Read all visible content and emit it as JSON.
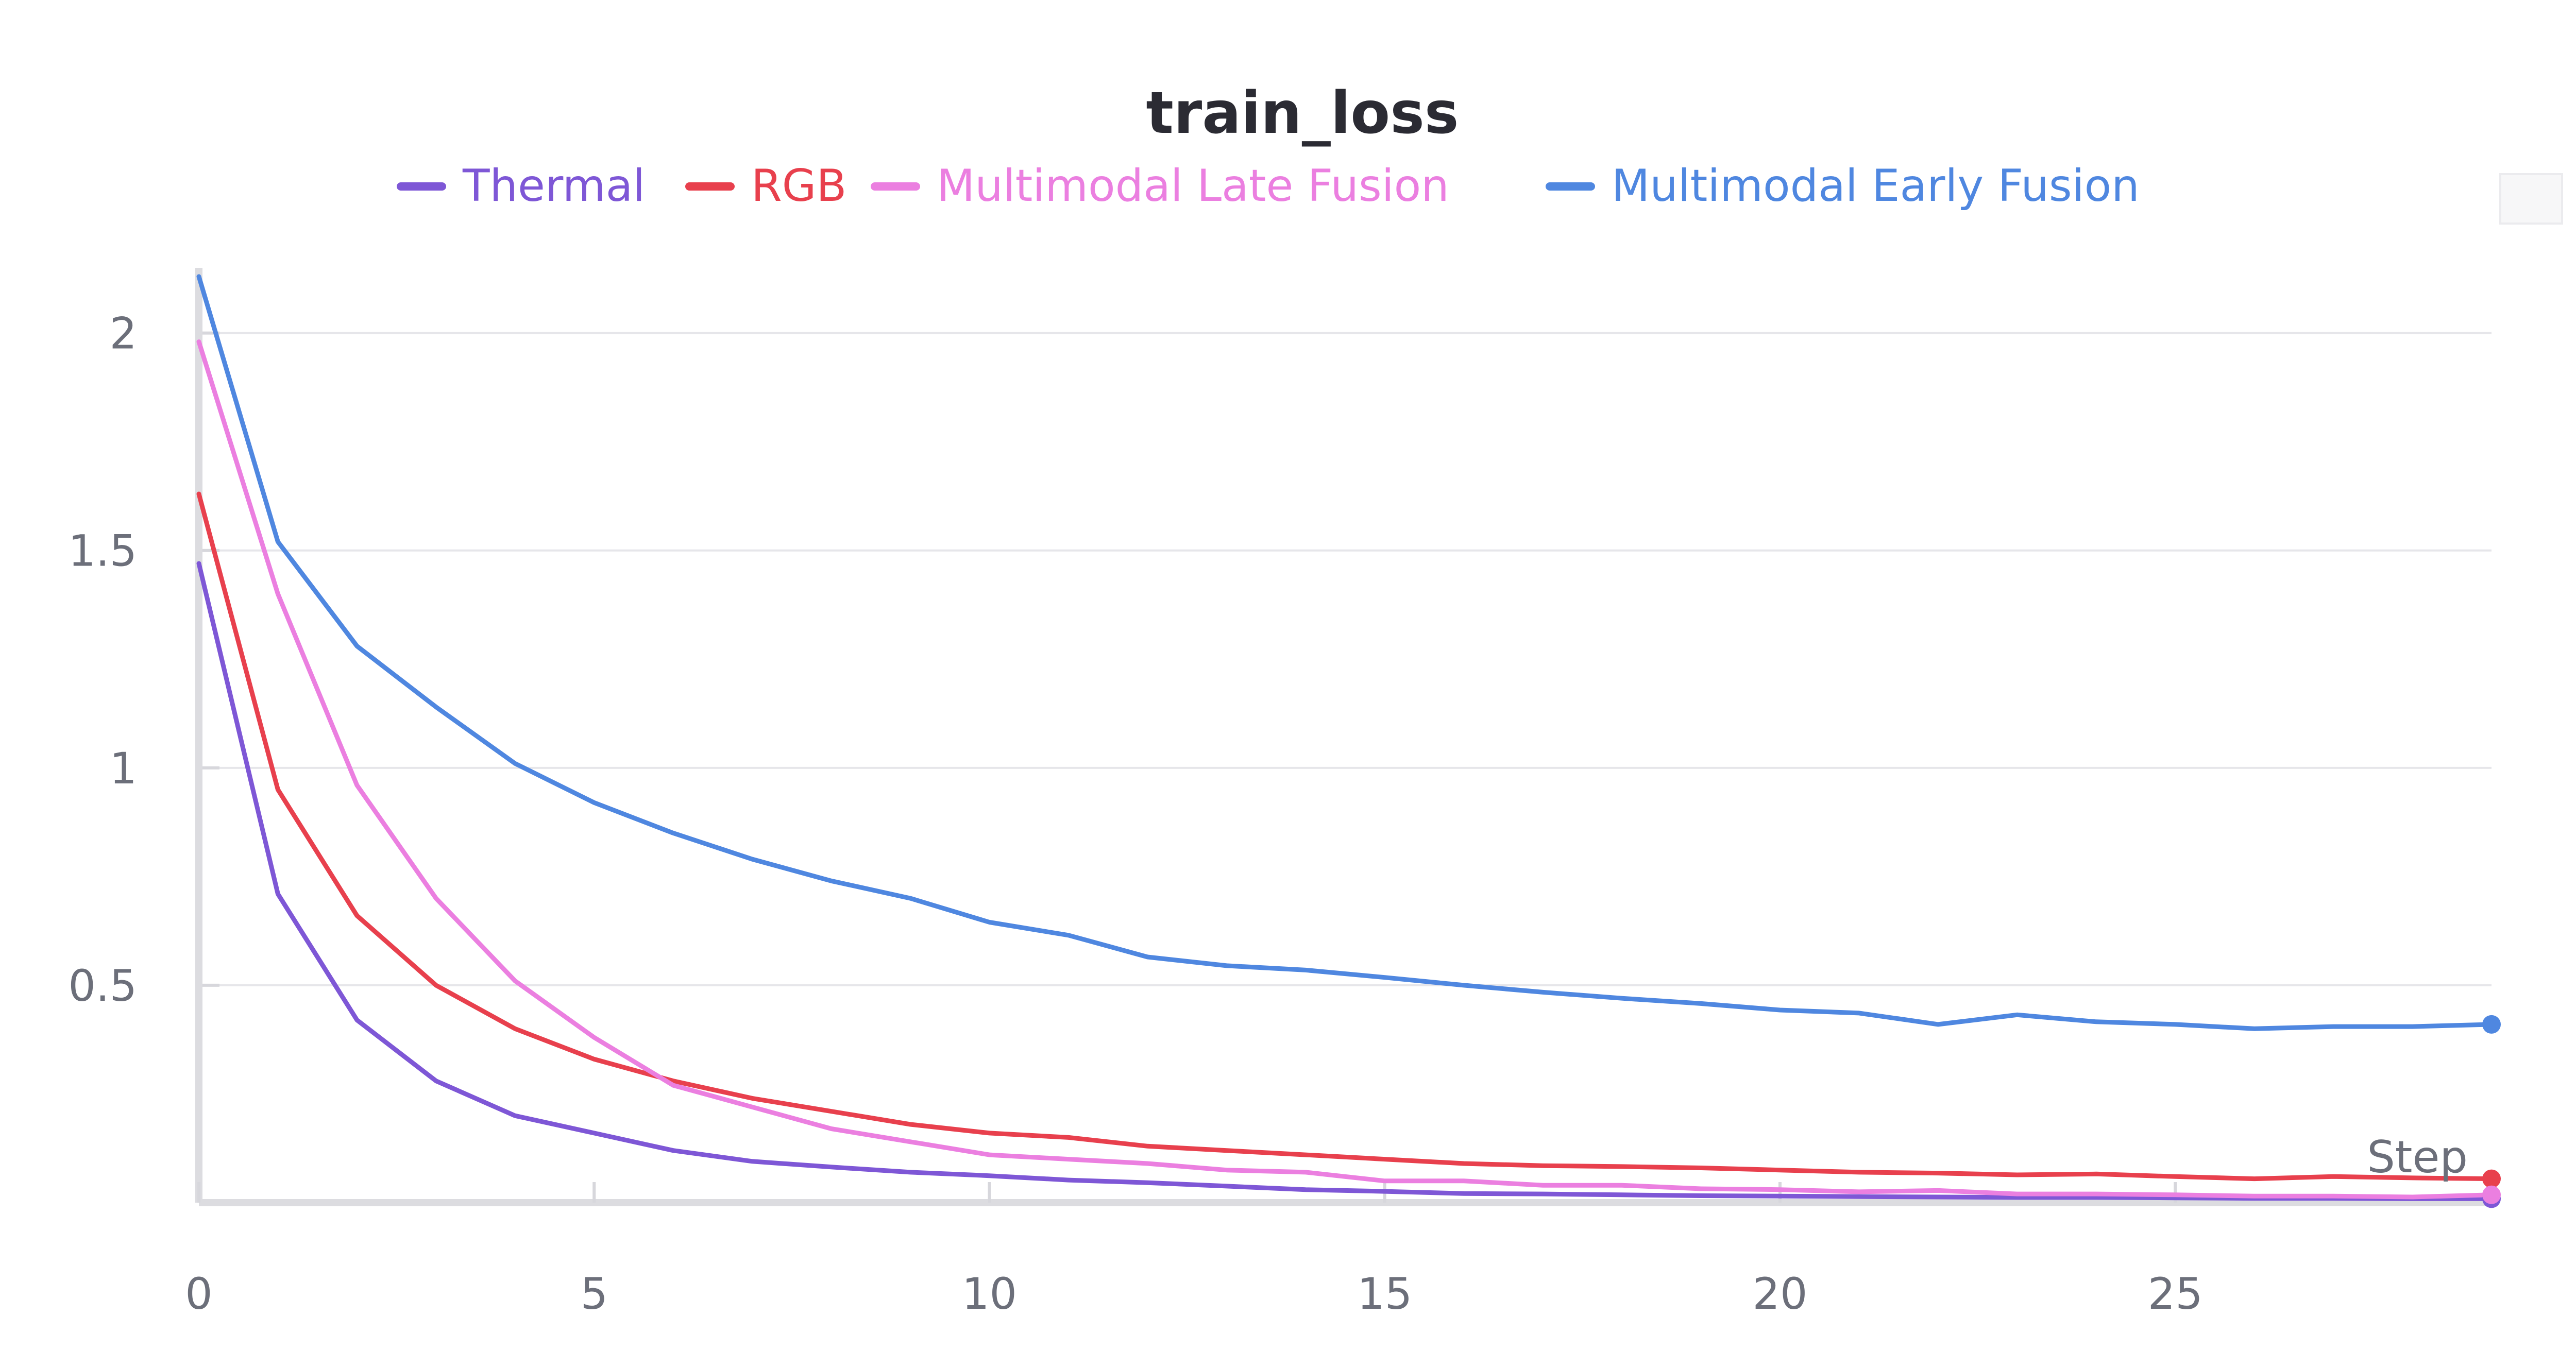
{
  "chart_data": {
    "type": "line",
    "title": "train_loss",
    "xlabel": "Step",
    "ylabel": "",
    "xlim": [
      0,
      29
    ],
    "ylim": [
      0,
      2.15
    ],
    "x_ticks": [
      0,
      5,
      10,
      15,
      20,
      25
    ],
    "y_ticks": [
      0.5,
      1,
      1.5,
      2
    ],
    "x_tick_labels": [
      "0",
      "5",
      "10",
      "15",
      "20",
      "25"
    ],
    "y_tick_labels": [
      "0.5",
      "1",
      "1.5",
      "2"
    ],
    "grid": true,
    "legend_position": "top",
    "x": [
      0,
      1,
      2,
      3,
      4,
      5,
      6,
      7,
      8,
      9,
      10,
      11,
      12,
      13,
      14,
      15,
      16,
      17,
      18,
      19,
      20,
      21,
      22,
      23,
      24,
      25,
      26,
      27,
      28,
      29
    ],
    "series": [
      {
        "name": "Thermal",
        "color": "#7e57d6",
        "values": [
          1.47,
          0.71,
          0.42,
          0.28,
          0.2,
          0.16,
          0.12,
          0.095,
          0.082,
          0.07,
          0.062,
          0.052,
          0.046,
          0.038,
          0.03,
          0.026,
          0.021,
          0.02,
          0.018,
          0.016,
          0.015,
          0.014,
          0.013,
          0.012,
          0.012,
          0.011,
          0.01,
          0.01,
          0.009,
          0.009
        ]
      },
      {
        "name": "RGB",
        "color": "#e8404d",
        "values": [
          1.63,
          0.95,
          0.66,
          0.5,
          0.4,
          0.33,
          0.28,
          0.24,
          0.21,
          0.18,
          0.16,
          0.15,
          0.13,
          0.12,
          0.11,
          0.1,
          0.09,
          0.085,
          0.083,
          0.08,
          0.075,
          0.07,
          0.068,
          0.064,
          0.066,
          0.06,
          0.055,
          0.06,
          0.057,
          0.055
        ]
      },
      {
        "name": "Multimodal Late Fusion",
        "color": "#eb7fe0",
        "values": [
          1.98,
          1.4,
          0.96,
          0.7,
          0.51,
          0.38,
          0.27,
          0.22,
          0.17,
          0.14,
          0.11,
          0.1,
          0.09,
          0.075,
          0.07,
          0.05,
          0.05,
          0.04,
          0.04,
          0.032,
          0.03,
          0.025,
          0.028,
          0.02,
          0.02,
          0.018,
          0.015,
          0.015,
          0.013,
          0.018
        ]
      },
      {
        "name": "Multimodal Early Fusion",
        "color": "#4f87e0",
        "values": [
          2.13,
          1.52,
          1.28,
          1.14,
          1.01,
          0.92,
          0.85,
          0.79,
          0.74,
          0.7,
          0.645,
          0.615,
          0.565,
          0.545,
          0.535,
          0.518,
          0.5,
          0.484,
          0.47,
          0.458,
          0.443,
          0.436,
          0.41,
          0.432,
          0.416,
          0.41,
          0.4,
          0.405,
          0.405,
          0.41
        ]
      }
    ]
  }
}
